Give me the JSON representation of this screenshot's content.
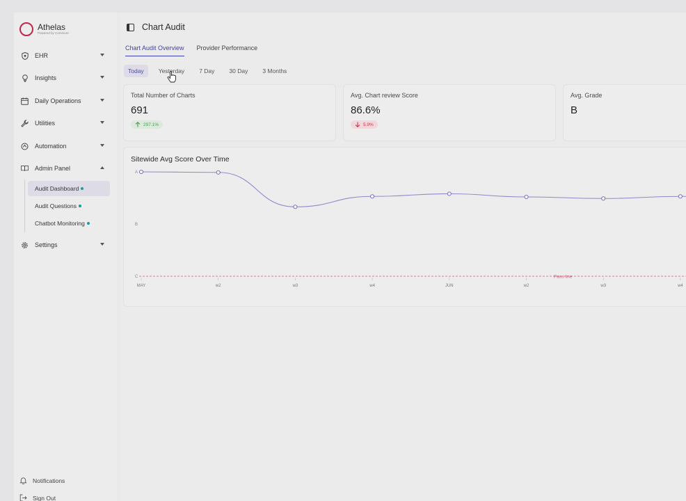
{
  "brand": {
    "name": "Athelas",
    "subtitle": "Powered by Commure",
    "color": "#c0254a"
  },
  "sidebar": {
    "items": [
      {
        "label": "EHR",
        "icon": "shield-icon",
        "expanded": false
      },
      {
        "label": "Insights",
        "icon": "lightbulb-icon",
        "expanded": false
      },
      {
        "label": "Daily Operations",
        "icon": "calendar-icon",
        "expanded": false
      },
      {
        "label": "Utilities",
        "icon": "wrench-icon",
        "expanded": false
      },
      {
        "label": "Automation",
        "icon": "automation-icon",
        "expanded": false
      },
      {
        "label": "Admin Panel",
        "icon": "book-icon",
        "expanded": true
      }
    ],
    "subitems": [
      {
        "label": "Audit Dashboard",
        "active": true
      },
      {
        "label": "Audit Questions",
        "active": false
      },
      {
        "label": "Chatbot Monitoring",
        "active": false
      }
    ],
    "settings": {
      "label": "Settings",
      "icon": "gear-icon"
    },
    "notifications": {
      "label": "Notifications",
      "icon": "bell-icon"
    },
    "signout": {
      "label": "Sign Out",
      "icon": "signout-icon"
    }
  },
  "header": {
    "title": "Chart Audit"
  },
  "tabs": [
    {
      "label": "Chart Audit Overview",
      "active": true
    },
    {
      "label": "Provider Performance",
      "active": false
    }
  ],
  "ranges": [
    {
      "label": "Today",
      "active": true
    },
    {
      "label": "Yesterday",
      "active": false
    },
    {
      "label": "7 Day",
      "active": false
    },
    {
      "label": "30 Day",
      "active": false
    },
    {
      "label": "3 Months",
      "active": false
    }
  ],
  "cards": [
    {
      "label": "Total Number of Charts",
      "value": "691",
      "change": "297.1%",
      "trend": "up"
    },
    {
      "label": "Avg. Chart review Score",
      "value": "86.6%",
      "change": "5.9%",
      "trend": "down"
    },
    {
      "label": "Avg. Grade",
      "value": "B"
    }
  ],
  "chart": {
    "title": "Sitewide Avg Score Over Time",
    "pass_line_label": "Pass line"
  },
  "chart_data": {
    "type": "line",
    "title": "Sitewide Avg Score Over Time",
    "x": [
      "MAY",
      "w2",
      "w3",
      "w4",
      "JUN",
      "w2",
      "w3",
      "w4"
    ],
    "y_ticks": [
      "A",
      "B",
      "C"
    ],
    "y_tick_values": [
      90,
      80,
      70
    ],
    "ylim": [
      68,
      92
    ],
    "series": [
      {
        "values": [
          90.0,
          89.9,
          83.3,
          85.3,
          85.8,
          85.2,
          84.9,
          85.3
        ]
      }
    ],
    "pass_line": {
      "label": "Pass line",
      "value": 70
    },
    "line_color": "#8e89c8",
    "pass_line_color": "#d65a75",
    "grid": false
  }
}
